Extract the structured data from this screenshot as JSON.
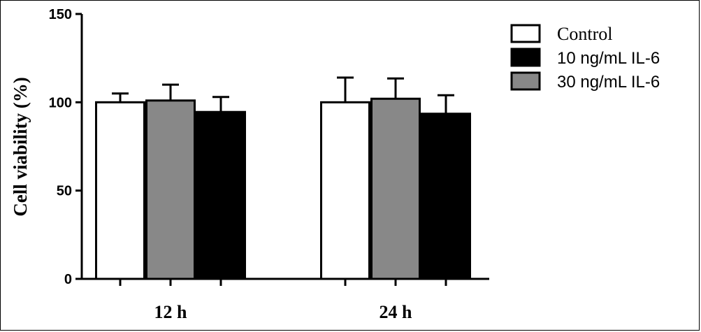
{
  "chart_data": {
    "type": "bar",
    "ylabel": "Cell viability (%)",
    "xlabel": "",
    "ylim": [
      0,
      150
    ],
    "yticks": [
      0,
      50,
      100,
      150
    ],
    "categories": [
      "12 h",
      "24 h"
    ],
    "legend_position": "top-right",
    "series": [
      {
        "name": "Control",
        "color": "#ffffff",
        "values": [
          100,
          100
        ],
        "errors": [
          5,
          14
        ]
      },
      {
        "name": "10 ng/mL IL-6",
        "color": "#000000",
        "values": [
          94.5,
          93.5
        ],
        "errors": [
          8.5,
          10.5
        ]
      },
      {
        "name": "30 ng/mL IL-6",
        "color": "#888888",
        "values": [
          101,
          102
        ],
        "errors": [
          9,
          11.5
        ]
      }
    ],
    "bar_order": [
      "Control",
      "30 ng/mL IL-6",
      "10 ng/mL IL-6"
    ]
  }
}
